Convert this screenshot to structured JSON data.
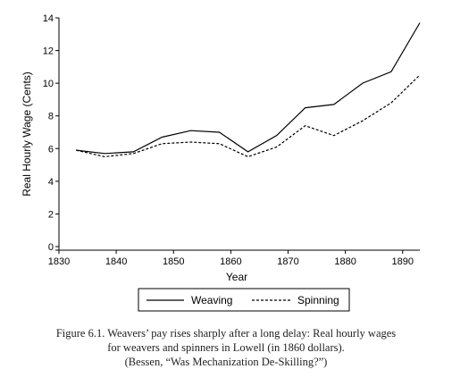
{
  "chart_data": {
    "type": "line",
    "title": "",
    "xlabel": "Year",
    "ylabel": "Real Hourly Wage (Cents)",
    "xlim": [
      1830,
      1893
    ],
    "ylim": [
      0,
      14
    ],
    "xticks": [
      1830,
      1840,
      1850,
      1860,
      1870,
      1880,
      1890
    ],
    "yticks": [
      0,
      2,
      4,
      6,
      8,
      10,
      12,
      14
    ],
    "grid": false,
    "legend_position": "bottom",
    "series": [
      {
        "name": "Weaving",
        "style": "solid",
        "x": [
          1833,
          1838,
          1843,
          1848,
          1853,
          1858,
          1863,
          1868,
          1873,
          1878,
          1883,
          1888,
          1893
        ],
        "values": [
          5.9,
          5.7,
          5.8,
          6.7,
          7.1,
          7.0,
          5.8,
          6.8,
          8.5,
          8.7,
          10.0,
          10.7,
          13.7
        ]
      },
      {
        "name": "Spinning",
        "style": "dashed",
        "x": [
          1833,
          1838,
          1843,
          1848,
          1853,
          1858,
          1863,
          1868,
          1873,
          1878,
          1883,
          1888,
          1893
        ],
        "values": [
          5.9,
          5.5,
          5.7,
          6.3,
          6.4,
          6.3,
          5.5,
          6.1,
          7.4,
          6.8,
          7.7,
          8.8,
          10.5
        ]
      }
    ]
  },
  "caption": {
    "line1": "Figure 6.1. Weavers’ pay rises sharply after a long delay: Real hourly wages",
    "line2": "for weavers and spinners in Lowell (in 1860 dollars).",
    "line3": "(Bessen, “Was Mechanization De-Skilling?”)"
  }
}
